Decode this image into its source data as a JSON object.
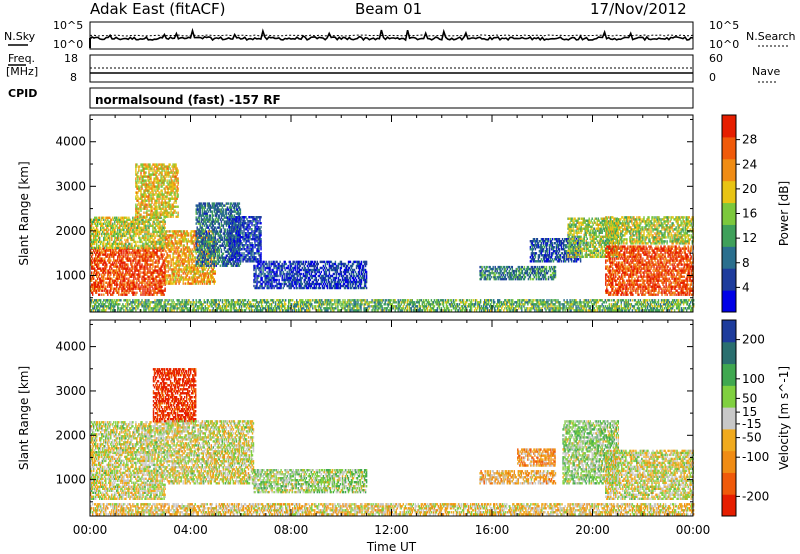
{
  "header": {
    "station": "Adak East (fitACF)",
    "beam": "Beam 01",
    "date": "17/Nov/2012"
  },
  "status_panels": {
    "nsky": {
      "label": "N.Sky",
      "ticks": [
        "10^5",
        "10^0"
      ]
    },
    "nsearch": {
      "label": "N.Search",
      "ticks": [
        "10^5",
        "10^0"
      ]
    },
    "freq": {
      "label_line1": "Freq.",
      "label_line2": "[MHz]",
      "ticks": [
        "18",
        "8"
      ]
    },
    "nave": {
      "label": "Nave",
      "ticks": [
        "60",
        "0"
      ]
    },
    "cpid": {
      "label": "CPID",
      "program": "normalsound (fast) -157 RF"
    }
  },
  "chart_data": [
    {
      "type": "heatmap",
      "name": "power-panel",
      "xlabel": "",
      "ylabel": "Slant Range [km]",
      "xlim": [
        0,
        24
      ],
      "ylim": [
        180,
        4600
      ],
      "yticks": [
        1000,
        2000,
        3000,
        4000
      ],
      "xticks": [
        0,
        4,
        8,
        12,
        16,
        20,
        24
      ],
      "colorbar": {
        "label": "Power [dB]",
        "range": [
          0,
          32
        ],
        "ticks": [
          4,
          8,
          12,
          16,
          20,
          24,
          28
        ],
        "colors": [
          "#0000e6",
          "#1e3c9c",
          "#2a6f8e",
          "#3fa05a",
          "#7cc83c",
          "#e8c414",
          "#f08c14",
          "#f05a0a",
          "#e61e00"
        ]
      },
      "regions": [
        {
          "t0": 0.0,
          "t1": 3.0,
          "r0": 550,
          "r1": 1600,
          "v": 28
        },
        {
          "t0": 0.0,
          "t1": 3.0,
          "r0": 1600,
          "r1": 2300,
          "v": 18
        },
        {
          "t0": 1.8,
          "t1": 3.5,
          "r0": 2300,
          "r1": 3500,
          "v": 20
        },
        {
          "t0": 3.0,
          "t1": 5.0,
          "r0": 800,
          "r1": 2000,
          "v": 22
        },
        {
          "t0": 4.2,
          "t1": 6.0,
          "r0": 1200,
          "r1": 2600,
          "v": 9
        },
        {
          "t0": 5.5,
          "t1": 6.8,
          "r0": 1300,
          "r1": 2300,
          "v": 5
        },
        {
          "t0": 6.5,
          "t1": 11.0,
          "r0": 700,
          "r1": 1300,
          "v": 5
        },
        {
          "t0": 15.5,
          "t1": 18.5,
          "r0": 900,
          "r1": 1200,
          "v": 10
        },
        {
          "t0": 17.5,
          "t1": 19.5,
          "r0": 1300,
          "r1": 1800,
          "v": 7
        },
        {
          "t0": 19.0,
          "t1": 21.0,
          "r0": 1400,
          "r1": 2300,
          "v": 16
        },
        {
          "t0": 20.5,
          "t1": 24.0,
          "r0": 550,
          "r1": 1650,
          "v": 28
        },
        {
          "t0": 20.5,
          "t1": 24.0,
          "r0": 1700,
          "r1": 2300,
          "v": 17
        },
        {
          "t0": 0.0,
          "t1": 24.0,
          "r0": 200,
          "r1": 450,
          "v": 14
        }
      ]
    },
    {
      "type": "heatmap",
      "name": "velocity-panel",
      "xlabel": "Time UT",
      "ylabel": "Slant Range [km]",
      "xlim": [
        0,
        24
      ],
      "ylim": [
        180,
        4600
      ],
      "yticks": [
        1000,
        2000,
        3000,
        4000
      ],
      "xticks": [
        0,
        4,
        8,
        12,
        16,
        20,
        24
      ],
      "xticklabels": [
        "00:00",
        "04:00",
        "08:00",
        "12:00",
        "16:00",
        "20:00",
        "00:00"
      ],
      "colorbar": {
        "label": "Velocity [m s^-1]",
        "range": [
          -250,
          250
        ],
        "ticks": [
          200,
          100,
          50,
          15,
          -15,
          -50,
          -100,
          -200
        ],
        "colors": [
          "#e61e00",
          "#f05a0a",
          "#f08c14",
          "#f0aa1e",
          "#c8c8c8",
          "#80d040",
          "#40a850",
          "#2a6f6f",
          "#1e3c9c"
        ]
      },
      "regions": [
        {
          "t0": 0.0,
          "t1": 3.0,
          "r0": 550,
          "r1": 1600,
          "v": 0
        },
        {
          "t0": 0.0,
          "t1": 3.0,
          "r0": 1600,
          "r1": 2300,
          "v": 5
        },
        {
          "t0": 2.5,
          "t1": 4.2,
          "r0": 2300,
          "r1": 3500,
          "v": -220
        },
        {
          "t0": 3.0,
          "t1": 6.5,
          "r0": 900,
          "r1": 2300,
          "v": 0
        },
        {
          "t0": 6.5,
          "t1": 11.0,
          "r0": 700,
          "r1": 1200,
          "v": 40
        },
        {
          "t0": 15.5,
          "t1": 18.5,
          "r0": 900,
          "r1": 1200,
          "v": -60
        },
        {
          "t0": 17.0,
          "t1": 18.5,
          "r0": 1300,
          "r1": 1700,
          "v": -90
        },
        {
          "t0": 18.8,
          "t1": 21.0,
          "r0": 900,
          "r1": 2300,
          "v": 45
        },
        {
          "t0": 20.5,
          "t1": 24.0,
          "r0": 550,
          "r1": 1650,
          "v": 0
        },
        {
          "t0": 0.0,
          "t1": 24.0,
          "r0": 200,
          "r1": 450,
          "v": -30
        }
      ]
    }
  ]
}
